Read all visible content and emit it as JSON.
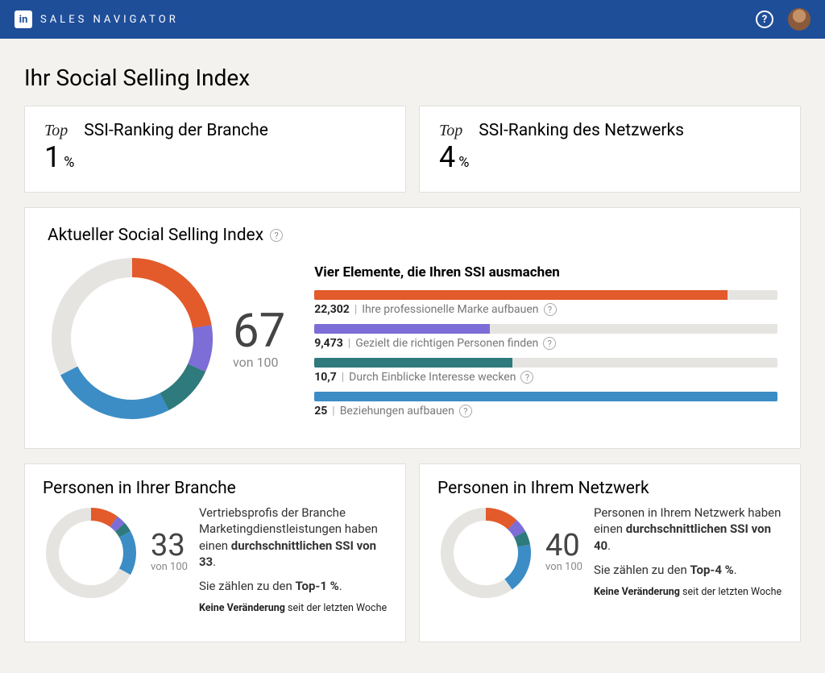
{
  "colors": {
    "header_bg": "#1f4e99",
    "page_bg": "#f3f2ef",
    "card_bg": "#ffffff",
    "border": "#e0dfdc",
    "ring_empty": "#e6e4e1",
    "orange": "#e35a2b",
    "purple": "#7c6ed6",
    "teal": "#2e7a7c",
    "blue": "#3c8dc5"
  },
  "header": {
    "logo_text": "in",
    "app_name": "SALES NAVIGATOR",
    "help": "?"
  },
  "page_title": "Ihr Social Selling Index",
  "rankings": [
    {
      "top_label": "Top",
      "title": "SSI-Ranking der Branche",
      "value": "1",
      "pct": "%"
    },
    {
      "top_label": "Top",
      "title": "SSI-Ranking des Netzwerks",
      "value": "4",
      "pct": "%"
    }
  ],
  "ssi": {
    "card_title": "Aktueller Social Selling Index",
    "score": "67",
    "of_label": "von 100",
    "max": 100,
    "donut": {
      "type": "donut",
      "radius": 88,
      "stroke": 24,
      "start_angle_deg": -90,
      "segments": [
        {
          "value": 22.302,
          "color": "#e35a2b"
        },
        {
          "value": 9.473,
          "color": "#7c6ed6"
        },
        {
          "value": 10.7,
          "color": "#2e7a7c"
        },
        {
          "value": 25,
          "color": "#3c8dc5"
        }
      ],
      "empty_color": "#e6e4e1"
    },
    "bars": {
      "title": "Vier Elemente, die Ihren SSI ausmachen",
      "max": 25,
      "track_color": "#e6e4e1",
      "items": [
        {
          "value_display": "22,302",
          "value": 22.302,
          "label": "Ihre professionelle Marke aufbauen",
          "color": "#e35a2b"
        },
        {
          "value_display": "9,473",
          "value": 9.473,
          "label": "Gezielt die richtigen Personen finden",
          "color": "#7c6ed6"
        },
        {
          "value_display": "10,7",
          "value": 10.7,
          "label": "Durch Einblicke Interesse wecken",
          "color": "#2e7a7c"
        },
        {
          "value_display": "25",
          "value": 25,
          "label": "Beziehungen aufbauen",
          "color": "#3c8dc5"
        }
      ]
    }
  },
  "bottom": [
    {
      "title": "Personen in Ihrer Branche",
      "score": "33",
      "of_label": "von 100",
      "donut": {
        "type": "donut",
        "radius": 48,
        "stroke": 16,
        "start_angle_deg": -90,
        "segments": [
          {
            "value": 10,
            "color": "#e35a2b"
          },
          {
            "value": 3.5,
            "color": "#7c6ed6"
          },
          {
            "value": 3.5,
            "color": "#2e7a7c"
          },
          {
            "value": 16,
            "color": "#3c8dc5"
          }
        ],
        "empty_color": "#e6e4e1",
        "max": 100
      },
      "desc_html": "Vertriebsprofis der Branche Marketingdienstleistungen haben einen <b>durchschnittlichen SSI von 33</b>.",
      "line2_html": "Sie zählen zu den <b>Top-1 %</b>.",
      "line3_html": "<b>Keine Veränderung</b> seit der letzten Woche"
    },
    {
      "title": "Personen in Ihrem Netzwerk",
      "score": "40",
      "of_label": "von 100",
      "donut": {
        "type": "donut",
        "radius": 48,
        "stroke": 16,
        "start_angle_deg": -90,
        "segments": [
          {
            "value": 12,
            "color": "#e35a2b"
          },
          {
            "value": 5,
            "color": "#7c6ed6"
          },
          {
            "value": 5,
            "color": "#2e7a7c"
          },
          {
            "value": 18,
            "color": "#3c8dc5"
          }
        ],
        "empty_color": "#e6e4e1",
        "max": 100
      },
      "desc_html": "Personen in Ihrem Netzwerk haben einen <b>durchschnittlichen SSI von 40</b>.",
      "line2_html": "Sie zählen zu den <b>Top-4 %</b>.",
      "line3_html": "<b>Keine Veränderung</b> seit der letzten Woche"
    }
  ]
}
